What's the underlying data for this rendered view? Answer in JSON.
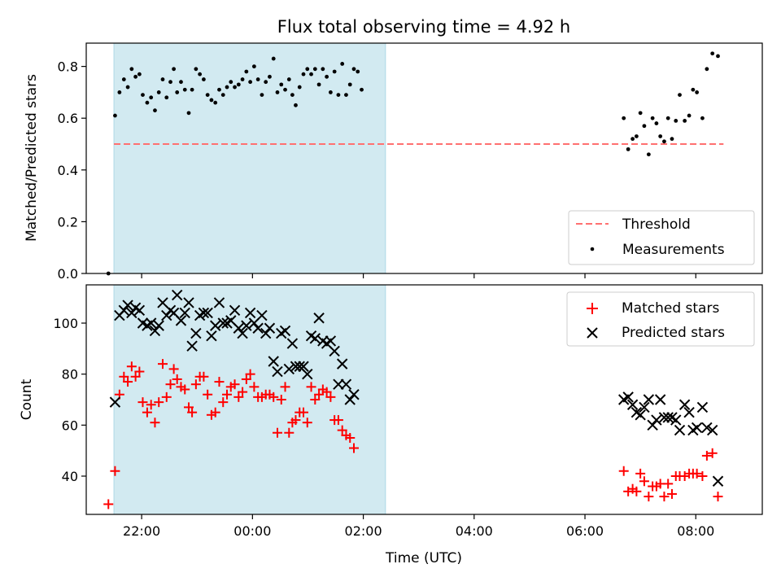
{
  "title": "Flux total observing time = 4.92 h",
  "colors": {
    "threshold": "#ff7070",
    "measurement": "#000000",
    "matched": "#ff0000",
    "predicted": "#000000",
    "shade": "#add8e6"
  },
  "chart_data": [
    {
      "type": "scatter",
      "ylabel": "Matched/Predicted stars",
      "ylim": [
        0,
        0.89
      ],
      "yticks": [
        "0.0",
        "0.2",
        "0.4",
        "0.6",
        "0.8"
      ],
      "xlim_hours": [
        21.0,
        33.2
      ],
      "shaded_span_hours": [
        21.5,
        26.4
      ],
      "legend_position": "lower-right",
      "threshold": {
        "name": "Threshold",
        "value": 0.5,
        "x_hours": [
          21.5,
          32.5
        ]
      },
      "series": [
        {
          "name": "Measurements",
          "marker": "dot",
          "points": [
            [
              21.4,
              0.0
            ],
            [
              21.52,
              0.61
            ],
            [
              21.6,
              0.7
            ],
            [
              21.68,
              0.75
            ],
            [
              21.75,
              0.72
            ],
            [
              21.82,
              0.79
            ],
            [
              21.89,
              0.76
            ],
            [
              21.96,
              0.77
            ],
            [
              22.02,
              0.69
            ],
            [
              22.1,
              0.66
            ],
            [
              22.17,
              0.68
            ],
            [
              22.24,
              0.63
            ],
            [
              22.31,
              0.7
            ],
            [
              22.38,
              0.75
            ],
            [
              22.45,
              0.68
            ],
            [
              22.52,
              0.74
            ],
            [
              22.58,
              0.79
            ],
            [
              22.64,
              0.7
            ],
            [
              22.71,
              0.74
            ],
            [
              22.78,
              0.71
            ],
            [
              22.85,
              0.62
            ],
            [
              22.91,
              0.71
            ],
            [
              22.98,
              0.79
            ],
            [
              23.05,
              0.77
            ],
            [
              23.12,
              0.75
            ],
            [
              23.19,
              0.69
            ],
            [
              23.26,
              0.67
            ],
            [
              23.33,
              0.66
            ],
            [
              23.4,
              0.71
            ],
            [
              23.47,
              0.69
            ],
            [
              23.54,
              0.72
            ],
            [
              23.61,
              0.74
            ],
            [
              23.68,
              0.72
            ],
            [
              23.75,
              0.73
            ],
            [
              23.82,
              0.75
            ],
            [
              23.89,
              0.78
            ],
            [
              23.96,
              0.74
            ],
            [
              24.03,
              0.8
            ],
            [
              24.1,
              0.75
            ],
            [
              24.17,
              0.69
            ],
            [
              24.24,
              0.74
            ],
            [
              24.31,
              0.76
            ],
            [
              24.38,
              0.83
            ],
            [
              24.45,
              0.7
            ],
            [
              24.52,
              0.73
            ],
            [
              24.59,
              0.71
            ],
            [
              24.66,
              0.75
            ],
            [
              24.72,
              0.69
            ],
            [
              24.78,
              0.65
            ],
            [
              24.85,
              0.72
            ],
            [
              24.92,
              0.77
            ],
            [
              24.99,
              0.79
            ],
            [
              25.06,
              0.77
            ],
            [
              25.13,
              0.79
            ],
            [
              25.2,
              0.73
            ],
            [
              25.27,
              0.79
            ],
            [
              25.34,
              0.76
            ],
            [
              25.41,
              0.7
            ],
            [
              25.48,
              0.78
            ],
            [
              25.55,
              0.69
            ],
            [
              25.62,
              0.81
            ],
            [
              25.69,
              0.69
            ],
            [
              25.76,
              0.73
            ],
            [
              25.83,
              0.79
            ],
            [
              25.9,
              0.78
            ],
            [
              25.97,
              0.71
            ],
            [
              30.7,
              0.6
            ],
            [
              30.78,
              0.48
            ],
            [
              30.86,
              0.52
            ],
            [
              30.93,
              0.53
            ],
            [
              31.0,
              0.62
            ],
            [
              31.07,
              0.57
            ],
            [
              31.15,
              0.46
            ],
            [
              31.22,
              0.6
            ],
            [
              31.29,
              0.58
            ],
            [
              31.36,
              0.53
            ],
            [
              31.43,
              0.51
            ],
            [
              31.5,
              0.6
            ],
            [
              31.57,
              0.52
            ],
            [
              31.64,
              0.59
            ],
            [
              31.71,
              0.69
            ],
            [
              31.8,
              0.59
            ],
            [
              31.88,
              0.61
            ],
            [
              31.95,
              0.71
            ],
            [
              32.02,
              0.7
            ],
            [
              32.12,
              0.6
            ],
            [
              32.2,
              0.79
            ],
            [
              32.3,
              0.85
            ],
            [
              32.4,
              0.84
            ]
          ]
        }
      ]
    },
    {
      "type": "scatter",
      "ylabel": "Count",
      "xlabel": "Time (UTC)",
      "ylim": [
        25,
        115
      ],
      "yticks": [
        "40",
        "60",
        "80",
        "100"
      ],
      "xlim_hours": [
        21.0,
        33.2
      ],
      "xtick_hours": [
        22,
        24,
        26,
        28,
        30,
        32
      ],
      "xticks": [
        "22:00",
        "00:00",
        "02:00",
        "04:00",
        "06:00",
        "08:00"
      ],
      "shaded_span_hours": [
        21.5,
        26.4
      ],
      "legend_position": "upper-right",
      "series": [
        {
          "name": "Matched stars",
          "marker": "plus",
          "points": [
            [
              21.4,
              29
            ],
            [
              21.52,
              42
            ],
            [
              21.6,
              72
            ],
            [
              21.68,
              79
            ],
            [
              21.75,
              77
            ],
            [
              21.82,
              83
            ],
            [
              21.89,
              79
            ],
            [
              21.96,
              81
            ],
            [
              22.02,
              69
            ],
            [
              22.1,
              65
            ],
            [
              22.17,
              68
            ],
            [
              22.24,
              61
            ],
            [
              22.31,
              69
            ],
            [
              22.38,
              84
            ],
            [
              22.45,
              71
            ],
            [
              22.52,
              76
            ],
            [
              22.58,
              82
            ],
            [
              22.64,
              78
            ],
            [
              22.71,
              75
            ],
            [
              22.78,
              74
            ],
            [
              22.85,
              67
            ],
            [
              22.91,
              65
            ],
            [
              22.98,
              76
            ],
            [
              23.05,
              79
            ],
            [
              23.12,
              79
            ],
            [
              23.19,
              72
            ],
            [
              23.26,
              64
            ],
            [
              23.33,
              65
            ],
            [
              23.4,
              77
            ],
            [
              23.47,
              69
            ],
            [
              23.54,
              72
            ],
            [
              23.61,
              75
            ],
            [
              23.68,
              76
            ],
            [
              23.75,
              71
            ],
            [
              23.82,
              73
            ],
            [
              23.89,
              78
            ],
            [
              23.96,
              80
            ],
            [
              24.03,
              75
            ],
            [
              24.1,
              71
            ],
            [
              24.17,
              71
            ],
            [
              24.24,
              72
            ],
            [
              24.31,
              72
            ],
            [
              24.38,
              71
            ],
            [
              24.45,
              57
            ],
            [
              24.52,
              70
            ],
            [
              24.59,
              75
            ],
            [
              24.66,
              57
            ],
            [
              24.72,
              61
            ],
            [
              24.78,
              62
            ],
            [
              24.85,
              65
            ],
            [
              24.92,
              65
            ],
            [
              24.99,
              61
            ],
            [
              25.06,
              75
            ],
            [
              25.13,
              70
            ],
            [
              25.2,
              72
            ],
            [
              25.27,
              74
            ],
            [
              25.34,
              73
            ],
            [
              25.41,
              71
            ],
            [
              25.48,
              62
            ],
            [
              25.55,
              62
            ],
            [
              25.62,
              58
            ],
            [
              25.69,
              56
            ],
            [
              25.76,
              55
            ],
            [
              25.83,
              51
            ],
            [
              30.7,
              42
            ],
            [
              30.78,
              34
            ],
            [
              30.86,
              35
            ],
            [
              30.93,
              34
            ],
            [
              31.0,
              41
            ],
            [
              31.07,
              38
            ],
            [
              31.15,
              32
            ],
            [
              31.22,
              36
            ],
            [
              31.29,
              36
            ],
            [
              31.36,
              37
            ],
            [
              31.43,
              32
            ],
            [
              31.5,
              37
            ],
            [
              31.57,
              33
            ],
            [
              31.64,
              40
            ],
            [
              31.71,
              40
            ],
            [
              31.8,
              40
            ],
            [
              31.88,
              41
            ],
            [
              31.95,
              41
            ],
            [
              32.02,
              41
            ],
            [
              32.12,
              40
            ],
            [
              32.2,
              48
            ],
            [
              32.3,
              49
            ],
            [
              32.4,
              32
            ]
          ]
        },
        {
          "name": "Predicted stars",
          "marker": "x",
          "points": [
            [
              21.52,
              69
            ],
            [
              21.6,
              103
            ],
            [
              21.68,
              105
            ],
            [
              21.75,
              107
            ],
            [
              21.82,
              104
            ],
            [
              21.89,
              106
            ],
            [
              21.96,
              105
            ],
            [
              22.02,
              100
            ],
            [
              22.1,
              99
            ],
            [
              22.17,
              100
            ],
            [
              22.24,
              97
            ],
            [
              22.31,
              99
            ],
            [
              22.38,
              108
            ],
            [
              22.45,
              103
            ],
            [
              22.52,
              105
            ],
            [
              22.58,
              104
            ],
            [
              22.64,
              111
            ],
            [
              22.71,
              101
            ],
            [
              22.78,
              104
            ],
            [
              22.85,
              108
            ],
            [
              22.91,
              91
            ],
            [
              22.98,
              96
            ],
            [
              23.05,
              103
            ],
            [
              23.12,
              104
            ],
            [
              23.19,
              104
            ],
            [
              23.26,
              95
            ],
            [
              23.33,
              99
            ],
            [
              23.4,
              108
            ],
            [
              23.47,
              100
            ],
            [
              23.54,
              100
            ],
            [
              23.61,
              101
            ],
            [
              23.68,
              105
            ],
            [
              23.75,
              98
            ],
            [
              23.82,
              96
            ],
            [
              23.89,
              99
            ],
            [
              23.96,
              104
            ],
            [
              24.03,
              100
            ],
            [
              24.1,
              98
            ],
            [
              24.17,
              103
            ],
            [
              24.24,
              96
            ],
            [
              24.31,
              98
            ],
            [
              24.38,
              85
            ],
            [
              24.45,
              81
            ],
            [
              24.52,
              96
            ],
            [
              24.59,
              97
            ],
            [
              24.66,
              82
            ],
            [
              24.72,
              92
            ],
            [
              24.78,
              83
            ],
            [
              24.85,
              83
            ],
            [
              24.92,
              83
            ],
            [
              24.99,
              80
            ],
            [
              25.06,
              95
            ],
            [
              25.13,
              94
            ],
            [
              25.2,
              102
            ],
            [
              25.27,
              93
            ],
            [
              25.34,
              92
            ],
            [
              25.41,
              93
            ],
            [
              25.48,
              89
            ],
            [
              25.55,
              76
            ],
            [
              25.62,
              84
            ],
            [
              25.69,
              76
            ],
            [
              25.76,
              70
            ],
            [
              25.83,
              72
            ],
            [
              30.7,
              70
            ],
            [
              30.78,
              71
            ],
            [
              30.86,
              68
            ],
            [
              30.93,
              65
            ],
            [
              31.0,
              64
            ],
            [
              31.07,
              67
            ],
            [
              31.15,
              70
            ],
            [
              31.22,
              60
            ],
            [
              31.29,
              62
            ],
            [
              31.36,
              70
            ],
            [
              31.43,
              63
            ],
            [
              31.5,
              63
            ],
            [
              31.57,
              63
            ],
            [
              31.64,
              62
            ],
            [
              31.71,
              58
            ],
            [
              31.8,
              68
            ],
            [
              31.88,
              65
            ],
            [
              31.95,
              58
            ],
            [
              32.02,
              59
            ],
            [
              32.12,
              67
            ],
            [
              32.2,
              59
            ],
            [
              32.3,
              58
            ],
            [
              32.4,
              38
            ]
          ]
        }
      ]
    }
  ]
}
